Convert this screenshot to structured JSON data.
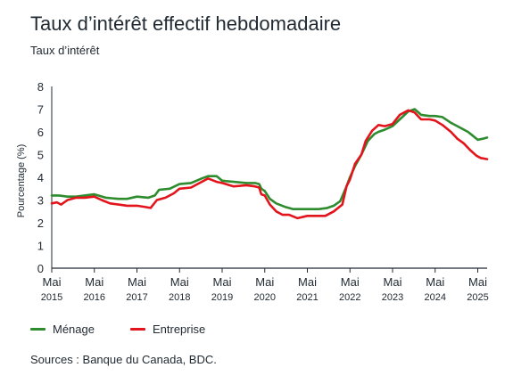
{
  "title": "Taux d’intérêt effectif hebdomadaire",
  "subtitle": "Taux d’intérêt",
  "source": "Sources : Banque du Canada, BDC.",
  "colors": {
    "menage": "#2e8b2e",
    "entreprise": "#e3141b",
    "axis": "#222b33"
  },
  "chart_data": {
    "type": "line",
    "ylabel": "Pourcentage (%)",
    "ylim": [
      0,
      8
    ],
    "yticks": [
      "0",
      "1",
      "2",
      "3",
      "4",
      "5",
      "6",
      "7",
      "8"
    ],
    "xlim": [
      2015.33,
      2025.55
    ],
    "xticks": [
      {
        "x": 2015.33,
        "line1": "Mai",
        "line2": "2015"
      },
      {
        "x": 2016.33,
        "line1": "Mai",
        "line2": "2016"
      },
      {
        "x": 2017.33,
        "line1": "Mai",
        "line2": "2017"
      },
      {
        "x": 2018.33,
        "line1": "Mai",
        "line2": "2018"
      },
      {
        "x": 2019.33,
        "line1": "Mai",
        "line2": "2019"
      },
      {
        "x": 2020.33,
        "line1": "Mai",
        "line2": "2020"
      },
      {
        "x": 2021.33,
        "line1": "Mai",
        "line2": "2021"
      },
      {
        "x": 2022.33,
        "line1": "Mai",
        "line2": "2022"
      },
      {
        "x": 2023.33,
        "line1": "Mai",
        "line2": "2023"
      },
      {
        "x": 2024.33,
        "line1": "Mai",
        "line2": "2024"
      },
      {
        "x": 2025.33,
        "line1": "Mai",
        "line2": "2025"
      }
    ],
    "series": [
      {
        "name": "Ménage",
        "color": "#2e8b2e",
        "points": [
          [
            2015.33,
            3.2
          ],
          [
            2015.5,
            3.2
          ],
          [
            2015.7,
            3.15
          ],
          [
            2015.9,
            3.15
          ],
          [
            2016.1,
            3.2
          ],
          [
            2016.33,
            3.25
          ],
          [
            2016.6,
            3.1
          ],
          [
            2016.9,
            3.05
          ],
          [
            2017.1,
            3.05
          ],
          [
            2017.33,
            3.15
          ],
          [
            2017.6,
            3.1
          ],
          [
            2017.75,
            3.2
          ],
          [
            2017.85,
            3.45
          ],
          [
            2018.1,
            3.5
          ],
          [
            2018.33,
            3.7
          ],
          [
            2018.6,
            3.75
          ],
          [
            2018.85,
            3.95
          ],
          [
            2019.0,
            4.05
          ],
          [
            2019.2,
            4.05
          ],
          [
            2019.33,
            3.85
          ],
          [
            2019.6,
            3.8
          ],
          [
            2019.9,
            3.75
          ],
          [
            2020.1,
            3.75
          ],
          [
            2020.2,
            3.7
          ],
          [
            2020.25,
            3.5
          ],
          [
            2020.33,
            3.4
          ],
          [
            2020.45,
            3.05
          ],
          [
            2020.6,
            2.85
          ],
          [
            2020.8,
            2.7
          ],
          [
            2021.0,
            2.6
          ],
          [
            2021.2,
            2.6
          ],
          [
            2021.33,
            2.6
          ],
          [
            2021.6,
            2.6
          ],
          [
            2021.8,
            2.65
          ],
          [
            2021.95,
            2.75
          ],
          [
            2022.1,
            2.95
          ],
          [
            2022.25,
            3.6
          ],
          [
            2022.33,
            4.0
          ],
          [
            2022.45,
            4.5
          ],
          [
            2022.6,
            5.0
          ],
          [
            2022.75,
            5.6
          ],
          [
            2022.9,
            5.9
          ],
          [
            2023.0,
            6.0
          ],
          [
            2023.15,
            6.1
          ],
          [
            2023.33,
            6.25
          ],
          [
            2023.5,
            6.55
          ],
          [
            2023.7,
            6.9
          ],
          [
            2023.85,
            7.0
          ],
          [
            2024.0,
            6.75
          ],
          [
            2024.2,
            6.7
          ],
          [
            2024.33,
            6.7
          ],
          [
            2024.5,
            6.65
          ],
          [
            2024.7,
            6.4
          ],
          [
            2024.9,
            6.2
          ],
          [
            2025.1,
            6.0
          ],
          [
            2025.2,
            5.85
          ],
          [
            2025.33,
            5.65
          ],
          [
            2025.45,
            5.7
          ],
          [
            2025.55,
            5.75
          ]
        ]
      },
      {
        "name": "Entreprise",
        "color": "#e3141b",
        "points": [
          [
            2015.33,
            2.85
          ],
          [
            2015.45,
            2.9
          ],
          [
            2015.55,
            2.8
          ],
          [
            2015.7,
            3.0
          ],
          [
            2015.9,
            3.1
          ],
          [
            2016.1,
            3.1
          ],
          [
            2016.33,
            3.15
          ],
          [
            2016.5,
            3.0
          ],
          [
            2016.7,
            2.85
          ],
          [
            2016.9,
            2.8
          ],
          [
            2017.1,
            2.75
          ],
          [
            2017.33,
            2.75
          ],
          [
            2017.5,
            2.7
          ],
          [
            2017.65,
            2.65
          ],
          [
            2017.8,
            3.0
          ],
          [
            2018.0,
            3.1
          ],
          [
            2018.2,
            3.3
          ],
          [
            2018.33,
            3.5
          ],
          [
            2018.6,
            3.55
          ],
          [
            2018.8,
            3.75
          ],
          [
            2019.0,
            3.95
          ],
          [
            2019.2,
            3.8
          ],
          [
            2019.33,
            3.75
          ],
          [
            2019.6,
            3.6
          ],
          [
            2019.9,
            3.65
          ],
          [
            2020.1,
            3.6
          ],
          [
            2020.2,
            3.55
          ],
          [
            2020.25,
            3.25
          ],
          [
            2020.33,
            3.2
          ],
          [
            2020.45,
            2.8
          ],
          [
            2020.6,
            2.5
          ],
          [
            2020.75,
            2.35
          ],
          [
            2020.9,
            2.35
          ],
          [
            2021.1,
            2.2
          ],
          [
            2021.33,
            2.3
          ],
          [
            2021.55,
            2.3
          ],
          [
            2021.75,
            2.3
          ],
          [
            2021.95,
            2.5
          ],
          [
            2022.15,
            2.8
          ],
          [
            2022.25,
            3.6
          ],
          [
            2022.33,
            3.9
          ],
          [
            2022.45,
            4.6
          ],
          [
            2022.6,
            5.0
          ],
          [
            2022.7,
            5.6
          ],
          [
            2022.85,
            6.05
          ],
          [
            2023.0,
            6.3
          ],
          [
            2023.15,
            6.25
          ],
          [
            2023.33,
            6.35
          ],
          [
            2023.5,
            6.75
          ],
          [
            2023.7,
            6.95
          ],
          [
            2023.85,
            6.85
          ],
          [
            2024.0,
            6.55
          ],
          [
            2024.2,
            6.55
          ],
          [
            2024.33,
            6.5
          ],
          [
            2024.5,
            6.3
          ],
          [
            2024.7,
            6.0
          ],
          [
            2024.85,
            5.7
          ],
          [
            2025.0,
            5.5
          ],
          [
            2025.15,
            5.2
          ],
          [
            2025.3,
            4.95
          ],
          [
            2025.4,
            4.85
          ],
          [
            2025.55,
            4.8
          ]
        ]
      }
    ]
  }
}
